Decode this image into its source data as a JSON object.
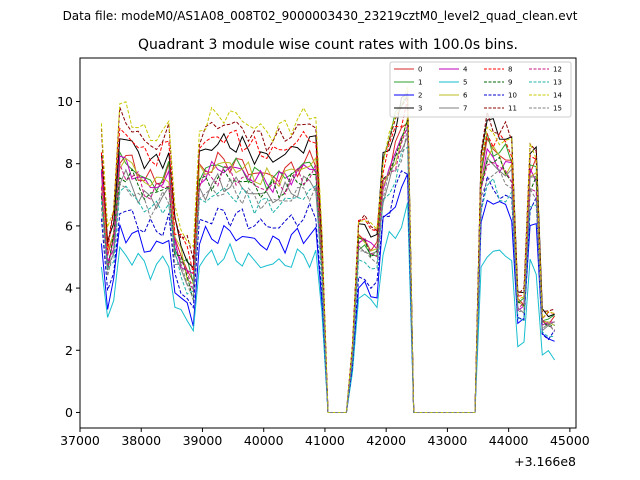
{
  "chart_data": {
    "type": "line",
    "suptitle": "Data file: modeM0/AS1A08_008T02_9000003430_23219cztM0_level2_quad_clean.evt",
    "title": "Quadrant 3 module wise count rates with 100.0s bins.",
    "x_offset_label": "+3.166e8",
    "x_offset": 316600000,
    "xlim": [
      37000,
      45100
    ],
    "ylim": [
      -0.5,
      11.4
    ],
    "x_ticks": [
      37000,
      38000,
      39000,
      40000,
      41000,
      42000,
      43000,
      44000,
      45000
    ],
    "x_tick_labels": [
      "37000",
      "38000",
      "39000",
      "40000",
      "41000",
      "42000",
      "43000",
      "44000",
      "45000"
    ],
    "y_ticks": [
      0,
      2,
      4,
      6,
      8,
      10
    ],
    "y_tick_labels": [
      "0",
      "2",
      "4",
      "6",
      "8",
      "10"
    ],
    "legend_position": "top-right",
    "x_segments": [
      {
        "start": 37350,
        "end": 40950,
        "step": 100
      },
      {
        "start": 41050,
        "end": 41350,
        "step": 100
      },
      {
        "start": 41450,
        "end": 42350,
        "step": 100
      },
      {
        "start": 42450,
        "end": 43450,
        "step": 100
      },
      {
        "start": 43550,
        "end": 44750,
        "step": 100
      }
    ],
    "series": [
      {
        "name": "0",
        "color": "#d62728",
        "dash": "solid",
        "level": 8.0,
        "seg1": 7.8,
        "seg2": 8.5,
        "seg3": 8.5
      },
      {
        "name": "1",
        "color": "#2ca02c",
        "dash": "solid",
        "level": 7.9,
        "seg1": 7.4,
        "seg2": 9.4,
        "seg3": 8.6
      },
      {
        "name": "2",
        "color": "#0000ff",
        "dash": "solid",
        "level": 5.7,
        "seg1": 5.6,
        "seg2": 6.8,
        "seg3": 6.8
      },
      {
        "name": "3",
        "color": "#000000",
        "dash": "solid",
        "level": 8.6,
        "seg1": 8.4,
        "seg2": 9.2,
        "seg3": 9.2
      },
      {
        "name": "4",
        "color": "#bf00bf",
        "dash": "solid",
        "level": 7.8,
        "seg1": 7.8,
        "seg2": 8.3,
        "seg3": 8.2
      },
      {
        "name": "5",
        "color": "#17becf",
        "dash": "solid",
        "level": 5.0,
        "seg1": 5.2,
        "seg2": 5.8,
        "seg3": 5.2
      },
      {
        "name": "6",
        "color": "#bcbd22",
        "dash": "solid",
        "level": 7.9,
        "seg1": 7.7,
        "seg2": 8.2,
        "seg3": 8.3
      },
      {
        "name": "7",
        "color": "#7f7f7f",
        "dash": "solid",
        "level": 7.3,
        "seg1": 7.4,
        "seg2": 8.0,
        "seg3": 8.0
      },
      {
        "name": "8",
        "color": "#ff0000",
        "dash": "dashed",
        "level": 8.8,
        "seg1": 8.6,
        "seg2": 9.0,
        "seg3": 8.9
      },
      {
        "name": "9",
        "color": "#006400",
        "dash": "dashed",
        "level": 7.5,
        "seg1": 7.6,
        "seg2": 8.3,
        "seg3": 8.1
      },
      {
        "name": "10",
        "color": "#0000cd",
        "dash": "dashed",
        "level": 6.3,
        "seg1": 6.0,
        "seg2": 7.1,
        "seg3": 7.2
      },
      {
        "name": "11",
        "color": "#8b0000",
        "dash": "dashed",
        "level": 9.2,
        "seg1": 8.7,
        "seg2": 9.3,
        "seg3": 9.3
      },
      {
        "name": "12",
        "color": "#c71585",
        "dash": "dashed",
        "level": 7.6,
        "seg1": 7.6,
        "seg2": 8.1,
        "seg3": 8.0
      },
      {
        "name": "13",
        "color": "#20b2aa",
        "dash": "dashed",
        "level": 7.0,
        "seg1": 6.8,
        "seg2": 7.6,
        "seg3": 7.2
      },
      {
        "name": "14",
        "color": "#c8c800",
        "dash": "dashed",
        "level": 9.5,
        "seg1": 8.7,
        "seg2": 9.4,
        "seg3": 9.0
      },
      {
        "name": "15",
        "color": "#808080",
        "dash": "dashed",
        "level": 7.1,
        "seg1": 7.2,
        "seg2": 7.9,
        "seg3": 7.7
      }
    ]
  }
}
